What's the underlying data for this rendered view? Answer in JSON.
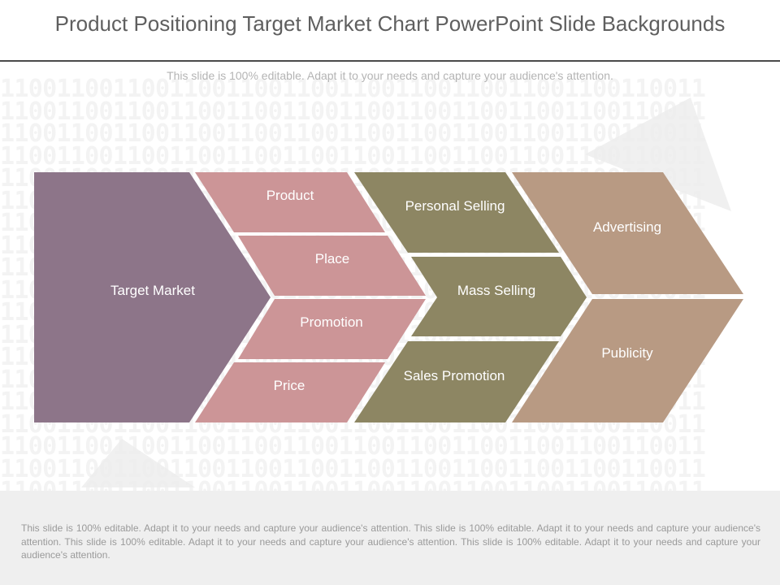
{
  "header": {
    "title": "Product Positioning Target Market Chart PowerPoint Slide Backgrounds",
    "subtitle": "This slide is 100% editable. Adapt it to your needs and capture your audience's attention."
  },
  "background": {
    "binary_pattern": "11001100110011001100110011001100110011001100110011"
  },
  "diagram": {
    "target": {
      "label": "Target Market"
    },
    "mix": [
      {
        "label": "Product"
      },
      {
        "label": "Place"
      },
      {
        "label": "Promotion"
      },
      {
        "label": "Price"
      }
    ],
    "selling": [
      {
        "label": "Personal Selling"
      },
      {
        "label": "Mass Selling"
      },
      {
        "label": "Sales Promotion"
      }
    ],
    "communication": [
      {
        "label": "Advertising"
      },
      {
        "label": "Publicity"
      }
    ],
    "colors": {
      "target": "#8d7589",
      "mix": "#cc9597",
      "selling": "#8d8663",
      "communication": "#b89a83"
    }
  },
  "footer": {
    "text": "This slide is 100% editable. Adapt it to your needs and capture your audience's attention. This slide is 100% editable. Adapt it to your needs and capture your audience's attention. This slide is 100% editable. Adapt it to your needs and capture your audience's attention. This slide is 100% editable. Adapt it to your needs and capture your audience's attention."
  }
}
